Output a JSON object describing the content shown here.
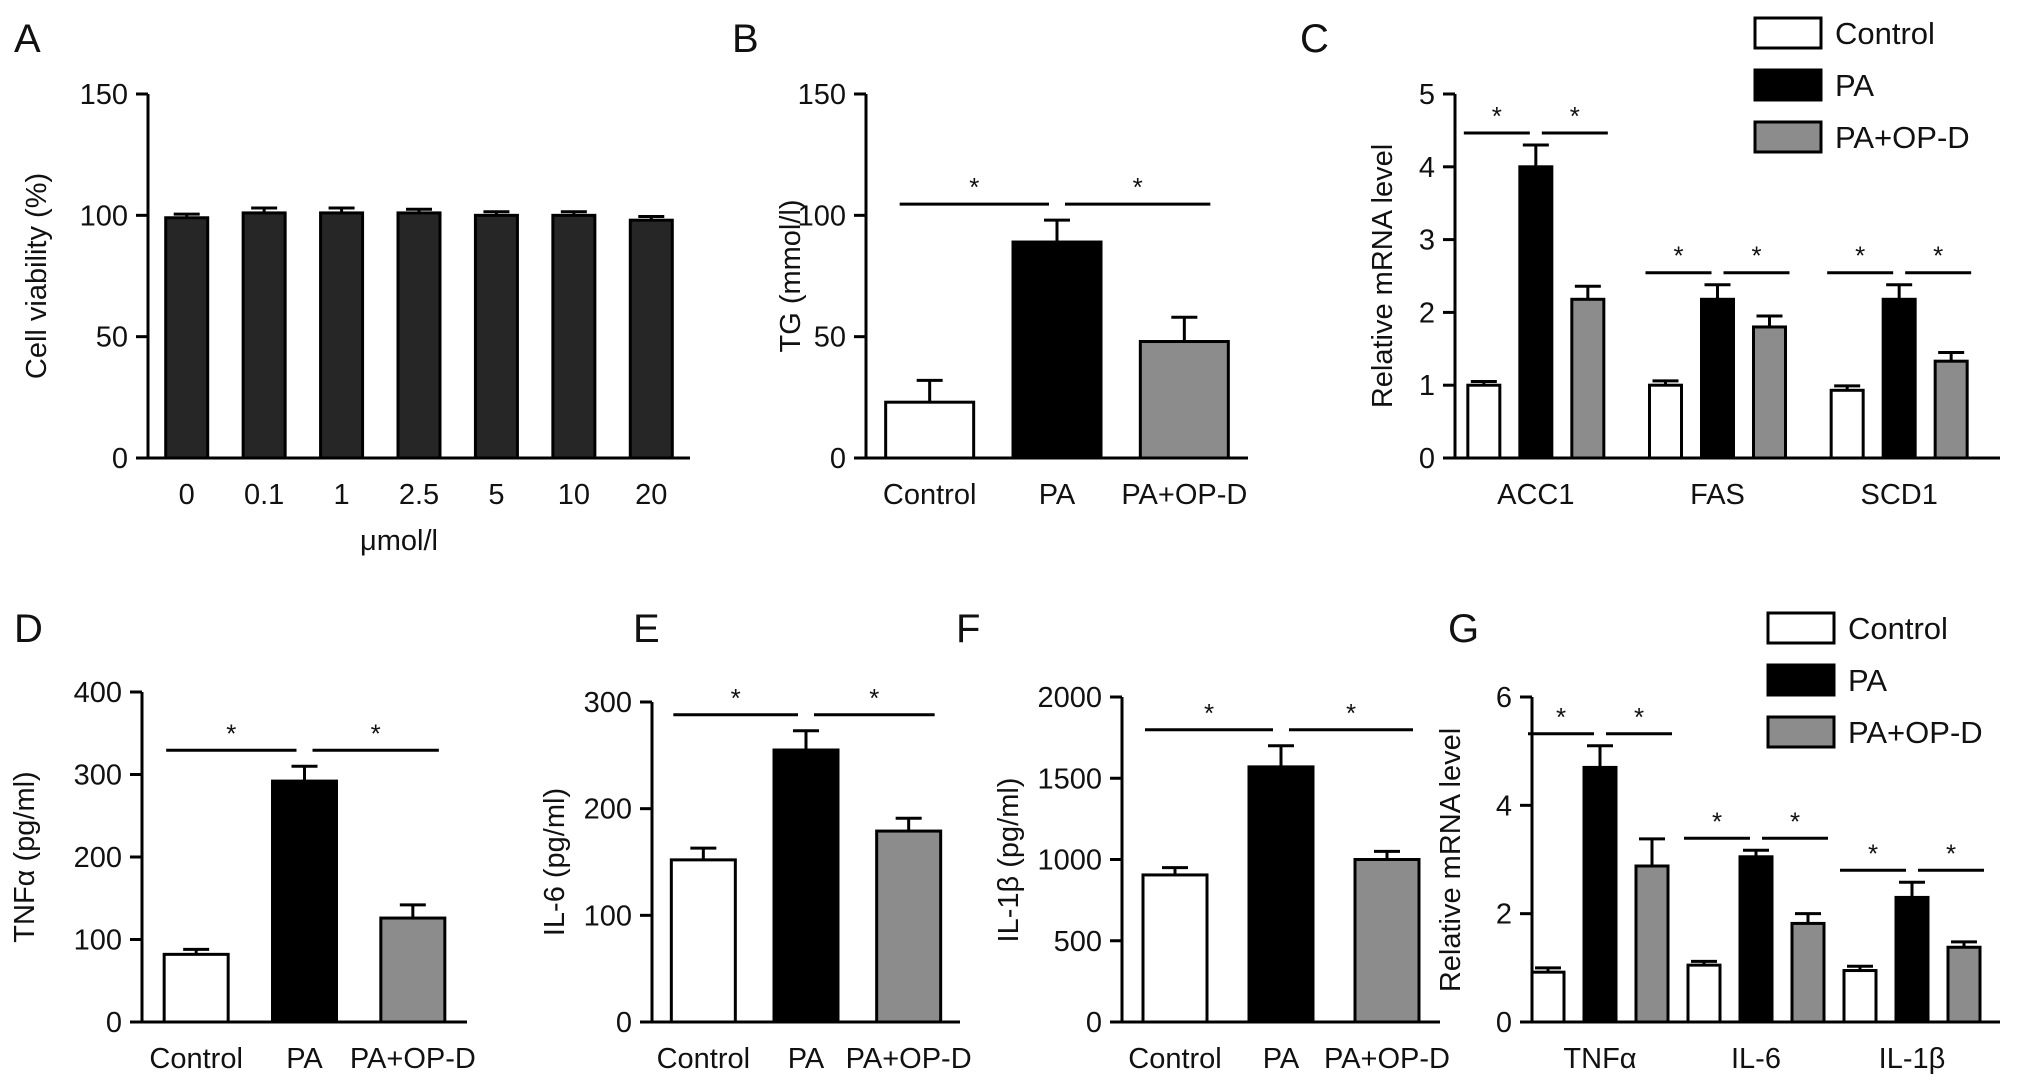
{
  "figure": {
    "panels": [
      "A",
      "B",
      "C",
      "D",
      "E",
      "F",
      "G"
    ]
  },
  "colors": {
    "Control": "#ffffff",
    "PA": "#000000",
    "PA+OP-D": "#8c8c8c",
    "bars_A": "#262626",
    "stroke": "#000000"
  },
  "chart_data": [
    {
      "panel": "A",
      "type": "bar",
      "xlabel": "μmol/l",
      "ylabel": "Cell viability (%)",
      "categories": [
        "0",
        "0.1",
        "1",
        "2.5",
        "5",
        "10",
        "20"
      ],
      "values": [
        99,
        101,
        101,
        101,
        100,
        100,
        98
      ],
      "errors": [
        1.5,
        2,
        2,
        1.5,
        1.5,
        1.5,
        1.5
      ],
      "ylim": [
        0,
        150
      ],
      "yticks": [
        "0",
        "50",
        "100",
        "150"
      ]
    },
    {
      "panel": "B",
      "type": "bar",
      "xlabel": "",
      "ylabel": "TG (mmol/l)",
      "categories": [
        "Control",
        "PA",
        "PA+OP-D"
      ],
      "values": [
        23,
        89,
        48
      ],
      "errors": [
        9,
        9,
        10
      ],
      "ylim": [
        0,
        150
      ],
      "yticks": [
        "0",
        "50",
        "100",
        "150"
      ],
      "significance": [
        [
          "Control",
          "PA",
          "*"
        ],
        [
          "PA",
          "PA+OP-D",
          "*"
        ]
      ]
    },
    {
      "panel": "C",
      "type": "bar",
      "xlabel": "",
      "ylabel": "Relative mRNA level",
      "categories": [
        "ACC1",
        "FAS",
        "SCD1"
      ],
      "series": [
        {
          "name": "Control",
          "values": [
            1.0,
            1.0,
            0.93
          ],
          "errors": [
            0.05,
            0.06,
            0.06
          ]
        },
        {
          "name": "PA",
          "values": [
            4.0,
            2.18,
            2.18
          ],
          "errors": [
            0.3,
            0.2,
            0.2
          ]
        },
        {
          "name": "PA+OP-D",
          "values": [
            2.18,
            1.8,
            1.33
          ],
          "errors": [
            0.18,
            0.15,
            0.12
          ]
        }
      ],
      "ylim": [
        0,
        5
      ],
      "yticks": [
        "0",
        "1",
        "2",
        "3",
        "4",
        "5"
      ],
      "legend": "top-right",
      "significance": [
        [
          "Control",
          "PA",
          "*"
        ],
        [
          "PA",
          "PA+OP-D",
          "*"
        ]
      ]
    },
    {
      "panel": "D",
      "type": "bar",
      "xlabel": "",
      "ylabel": "TNFα (pg/ml)",
      "categories": [
        "Control",
        "PA",
        "PA+OP-D"
      ],
      "values": [
        82,
        292,
        126
      ],
      "errors": [
        6,
        18,
        16
      ],
      "ylim": [
        0,
        400
      ],
      "yticks": [
        "0",
        "100",
        "200",
        "300",
        "400"
      ],
      "significance": [
        [
          "Control",
          "PA",
          "*"
        ],
        [
          "PA",
          "PA+OP-D",
          "*"
        ]
      ]
    },
    {
      "panel": "E",
      "type": "bar",
      "xlabel": "",
      "ylabel": "IL-6 (pg/ml)",
      "categories": [
        "Control",
        "PA",
        "PA+OP-D"
      ],
      "values": [
        152,
        255,
        179
      ],
      "errors": [
        11,
        18,
        12
      ],
      "ylim": [
        0,
        300
      ],
      "yticks": [
        "0",
        "100",
        "200",
        "300"
      ],
      "significance": [
        [
          "Control",
          "PA",
          "*"
        ],
        [
          "PA",
          "PA+OP-D",
          "*"
        ]
      ]
    },
    {
      "panel": "F",
      "type": "bar",
      "xlabel": "",
      "ylabel": "IL-1β (pg/ml)",
      "categories": [
        "Control",
        "PA",
        "PA+OP-D"
      ],
      "values": [
        905,
        1570,
        1000
      ],
      "errors": [
        45,
        130,
        50
      ],
      "ylim": [
        0,
        2000
      ],
      "yticks": [
        "0",
        "500",
        "1000",
        "1500",
        "2000"
      ],
      "significance": [
        [
          "Control",
          "PA",
          "*"
        ],
        [
          "PA",
          "PA+OP-D",
          "*"
        ]
      ]
    },
    {
      "panel": "G",
      "type": "bar",
      "xlabel": "",
      "ylabel": "Relative mRNA level",
      "categories": [
        "TNFα",
        "IL-6",
        "IL-1β"
      ],
      "series": [
        {
          "name": "Control",
          "values": [
            0.92,
            1.05,
            0.95
          ],
          "errors": [
            0.08,
            0.07,
            0.08
          ]
        },
        {
          "name": "PA",
          "values": [
            4.7,
            3.05,
            2.3
          ],
          "errors": [
            0.4,
            0.12,
            0.28
          ]
        },
        {
          "name": "PA+OP-D",
          "values": [
            2.88,
            1.82,
            1.38
          ],
          "errors": [
            0.5,
            0.18,
            0.1
          ]
        }
      ],
      "ylim": [
        0,
        6
      ],
      "yticks": [
        "0",
        "2",
        "4",
        "6"
      ],
      "legend": "top-right",
      "significance": [
        [
          "Control",
          "PA",
          "*"
        ],
        [
          "PA",
          "PA+OP-D",
          "*"
        ]
      ]
    }
  ]
}
